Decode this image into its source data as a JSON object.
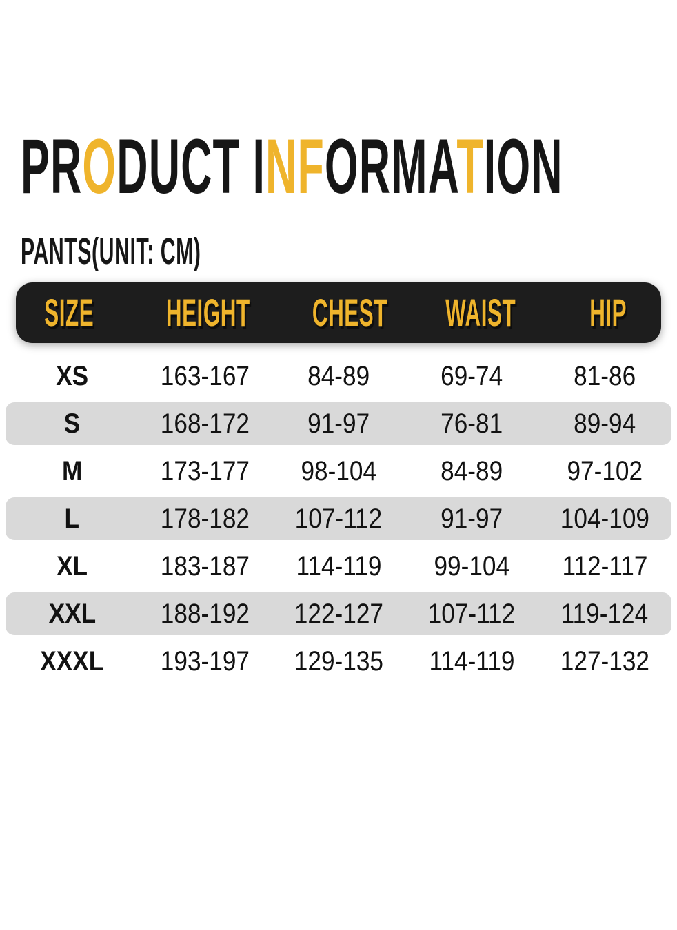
{
  "colors": {
    "accent": "#EFB42C",
    "dark": "#161616",
    "header_bar": "#1D1D1D",
    "row_alt": "#D9D9D9"
  },
  "title": {
    "text": "PRODUCT INFORMATION",
    "segments": [
      {
        "text": "PR",
        "accent": false
      },
      {
        "text": "O",
        "accent": true
      },
      {
        "text": "DUCT I",
        "accent": false
      },
      {
        "text": "NF",
        "accent": true
      },
      {
        "text": "ORMA",
        "accent": false
      },
      {
        "text": "T",
        "accent": true
      },
      {
        "text": "ION",
        "accent": false
      }
    ]
  },
  "subtitle": "PANTS(UNIT: CM)",
  "chart_data": {
    "type": "table",
    "title": "PRODUCT INFORMATION",
    "subtitle": "PANTS(UNIT: CM)",
    "unit": "cm",
    "columns": [
      "SIZE",
      "HEIGHT",
      "CHEST",
      "WAIST",
      "HIP"
    ],
    "rows": [
      [
        "XS",
        "163-167",
        "84-89",
        "69-74",
        "81-86"
      ],
      [
        "S",
        "168-172",
        "91-97",
        "76-81",
        "89-94"
      ],
      [
        "M",
        "173-177",
        "98-104",
        "84-89",
        "97-102"
      ],
      [
        "L",
        "178-182",
        "107-112",
        "91-97",
        "104-109"
      ],
      [
        "XL",
        "183-187",
        "114-119",
        "99-104",
        "112-117"
      ],
      [
        "XXL",
        "188-192",
        "122-127",
        "107-112",
        "119-124"
      ],
      [
        "XXXL",
        "193-197",
        "129-135",
        "114-119",
        "127-132"
      ]
    ]
  }
}
